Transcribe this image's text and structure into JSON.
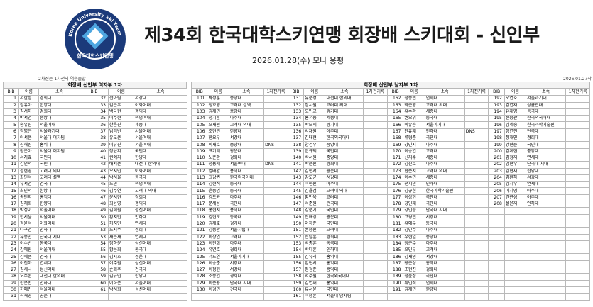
{
  "header": {
    "logo_ring_text": "Korea University Ski Team Association",
    "logo_bottom_text": "한국대학스키연맹",
    "title": "제34회 한국대학스키연맹 회장배 스키대회 - 신인부",
    "subtitle": "2026.01.28(수) 모나 용평"
  },
  "notes": {
    "left": "2차전은 1차전의 역순출발",
    "right": "2026.01.27작성"
  },
  "women": {
    "title": "회장배 신인부 여자부 1차",
    "col_bib": "BIB",
    "col_name": "이름",
    "col_school": "소속",
    "left": [
      [
        "1",
        "서한정",
        "경희대"
      ],
      [
        "2",
        "정유아",
        "한양대"
      ],
      [
        "3",
        "김서하",
        "경희대"
      ],
      [
        "4",
        "박서연",
        "중앙대"
      ],
      [
        "5",
        "송유진",
        "서울여대"
      ],
      [
        "6",
        "정명은",
        "서울과기대"
      ],
      [
        "7",
        "이서은",
        "서울대 여자팀"
      ],
      [
        "8",
        "신해린",
        "홍익대"
      ],
      [
        "9",
        "장은아",
        "서울대 여자팀"
      ],
      [
        "10",
        "서지효",
        "국민대"
      ],
      [
        "11",
        "김연서",
        "국민대"
      ],
      [
        "12",
        "정현영",
        "고려대 의대"
      ],
      [
        "13",
        "최민서",
        "고려대 설백"
      ],
      [
        "14",
        "유서연",
        "건국대"
      ],
      [
        "15",
        "최민서",
        "한양대"
      ],
      [
        "16",
        "송민지",
        "홍익대"
      ],
      [
        "17",
        "김채희",
        "한양대"
      ],
      [
        "18",
        "박정이",
        "서울여대"
      ],
      [
        "19",
        "한서윤",
        "서울여대"
      ],
      [
        "20",
        "정윤서",
        "이화여대"
      ],
      [
        "21",
        "나구연",
        "인하대"
      ],
      [
        "22",
        "유승민",
        "단국대 치대"
      ],
      [
        "23",
        "이수빈",
        "동국대"
      ],
      [
        "24",
        "강예원",
        "서울여대"
      ],
      [
        "25",
        "김예은",
        "건국대"
      ],
      [
        "26",
        "이진하",
        "연세대"
      ],
      [
        "27",
        "김세나",
        "성신여대"
      ],
      [
        "28",
        "오수현",
        "대전대 한의대"
      ],
      [
        "29",
        "한은빈",
        "인하대"
      ],
      [
        "30",
        "허예린",
        "서울여대"
      ],
      [
        "31",
        "허채영",
        "공운대"
      ]
    ],
    "right": [
      [
        "32",
        "전아림",
        "서강대"
      ],
      [
        "33",
        "김은우",
        "이화여대"
      ],
      [
        "34",
        "백다현",
        "홍익대"
      ],
      [
        "35",
        "이주현",
        "숙명여대"
      ],
      [
        "36",
        "한윤진",
        "세종대"
      ],
      [
        "37",
        "남려빈",
        "서울여대"
      ],
      [
        "38",
        "유도은",
        "서울여대"
      ],
      [
        "39",
        "이유진",
        "서울여대"
      ],
      [
        "40",
        "정윤지",
        "국민대"
      ],
      [
        "41",
        "권예지",
        "한양대"
      ],
      [
        "42",
        "배서은",
        "대전대 한의대"
      ],
      [
        "43",
        "오지민",
        "이화여대"
      ],
      [
        "44",
        "박서율",
        "동국대"
      ],
      [
        "45",
        "노민",
        "숙명여대"
      ],
      [
        "46",
        "김주연",
        "고려대 의대"
      ],
      [
        "47",
        "윤서현",
        "경희대"
      ],
      [
        "48",
        "최윤영",
        "홍익대"
      ],
      [
        "49",
        "김해원",
        "성신여대"
      ],
      [
        "50",
        "황지민",
        "인하대"
      ],
      [
        "51",
        "하지민",
        "연세대"
      ],
      [
        "52",
        "노지수",
        "경희대"
      ],
      [
        "53",
        "채은채",
        "연세대"
      ],
      [
        "54",
        "정하윤",
        "성신여대"
      ],
      [
        "55",
        "황윤희",
        "동국대"
      ],
      [
        "56",
        "김시호",
        "경운대"
      ],
      [
        "57",
        "이주원",
        "성신여대"
      ],
      [
        "58",
        "손희주",
        "건국대"
      ],
      [
        "59",
        "김규민",
        "한양대"
      ],
      [
        "60",
        "이하은",
        "서울여대"
      ],
      [
        "61",
        "박서희",
        "성신여대"
      ]
    ]
  },
  "men": {
    "title": "회장배 신인부 남자부 1차",
    "col_bib": "BIB",
    "col_name": "이름",
    "col_school": "소속",
    "col_record": "1차전기록",
    "cols": [
      [
        [
          "101",
          "박성훈",
          "중앙대",
          ""
        ],
        [
          "102",
          "정호영",
          "고려대 설백",
          ""
        ],
        [
          "103",
          "김재민",
          "중앙대",
          ""
        ],
        [
          "104",
          "정기훈",
          "아주대",
          ""
        ],
        [
          "105",
          "오재원",
          "고려대 의대",
          ""
        ],
        [
          "106",
          "조현민",
          "한양대",
          ""
        ],
        [
          "107",
          "한요우",
          "서강대",
          ""
        ],
        [
          "108",
          "이재호",
          "중앙대",
          "DNS"
        ],
        [
          "109",
          "표기태",
          "광운대",
          ""
        ],
        [
          "110",
          "노준환",
          "경희대",
          ""
        ],
        [
          "111",
          "정용재",
          "서울여대",
          "DNS"
        ],
        [
          "112",
          "염태완",
          "홍익대",
          ""
        ],
        [
          "113",
          "최강권",
          "한국외국어대",
          ""
        ],
        [
          "114",
          "김현석",
          "동국대",
          ""
        ],
        [
          "115",
          "윤승엽",
          "동국대",
          ""
        ],
        [
          "116",
          "김도균",
          "아주대",
          ""
        ],
        [
          "117",
          "문세용",
          "국민대",
          ""
        ],
        [
          "118",
          "홍현서",
          "홍익대",
          ""
        ],
        [
          "119",
          "김현모",
          "동국대",
          ""
        ],
        [
          "120",
          "김재호",
          "경기대",
          ""
        ],
        [
          "121",
          "김승환",
          "서울시립대",
          ""
        ],
        [
          "122",
          "이상연",
          "고려대",
          ""
        ],
        [
          "123",
          "이진희",
          "아주대",
          ""
        ],
        [
          "124",
          "유연호",
          "경희대",
          ""
        ],
        [
          "125",
          "서도연",
          "서울과기대",
          ""
        ],
        [
          "126",
          "이승준",
          "서강대",
          ""
        ],
        [
          "127",
          "이정현",
          "서강대",
          ""
        ],
        [
          "128",
          "소승건",
          "경희대",
          ""
        ],
        [
          "129",
          "이준용",
          "단국대 치대",
          ""
        ],
        [
          "130",
          "이경민",
          "건국대",
          ""
        ]
      ],
      [
        [
          "131",
          "유준성",
          "대전대 한의대",
          ""
        ],
        [
          "132",
          "정시원",
          "고려대 의대",
          ""
        ],
        [
          "133",
          "오민교",
          "경기대",
          ""
        ],
        [
          "134",
          "홍서용",
          "세종대",
          ""
        ],
        [
          "135",
          "박모세",
          "경기대",
          ""
        ],
        [
          "136",
          "서재원",
          "아주대",
          ""
        ],
        [
          "137",
          "김태현",
          "한국외국어대",
          ""
        ],
        [
          "138",
          "양건우",
          "중앙대",
          ""
        ],
        [
          "139",
          "한규택",
          "국민대",
          ""
        ],
        [
          "140",
          "박서원",
          "중앙대",
          ""
        ],
        [
          "141",
          "박준원",
          "경희대",
          ""
        ],
        [
          "142",
          "김현서",
          "광운대",
          ""
        ],
        [
          "143",
          "강도균",
          "서강대",
          ""
        ],
        [
          "144",
          "이현원",
          "아주대",
          ""
        ],
        [
          "145",
          "김율겸",
          "고려대 의대",
          ""
        ],
        [
          "146",
          "황민욱",
          "고려대",
          ""
        ],
        [
          "147",
          "서준원",
          "건국대",
          ""
        ],
        [
          "148",
          "강준기",
          "국민대",
          ""
        ],
        [
          "149",
          "전해성",
          "광운대",
          ""
        ],
        [
          "150",
          "이하준",
          "국민대",
          ""
        ],
        [
          "151",
          "권승원",
          "고려대",
          ""
        ],
        [
          "152",
          "전남훈",
          "경희대",
          ""
        ],
        [
          "153",
          "박종훈",
          "동국대",
          ""
        ],
        [
          "154",
          "박다훈",
          "인하대",
          ""
        ],
        [
          "155",
          "김유리",
          "홍익대",
          ""
        ],
        [
          "156",
          "임현서",
          "홍익대",
          ""
        ],
        [
          "157",
          "정정준",
          "홍익대",
          ""
        ],
        [
          "158",
          "서주원",
          "한국외국어대",
          ""
        ],
        [
          "159",
          "김연재",
          "홍익대",
          ""
        ],
        [
          "160",
          "유서윤",
          "국민대",
          ""
        ],
        [
          "161",
          "이승훈",
          "서울대 남자팀",
          ""
        ]
      ],
      [
        [
          "162",
          "정승빈",
          "연세대",
          ""
        ],
        [
          "163",
          "박준영",
          "고려대 의대",
          ""
        ],
        [
          "164",
          "유수환",
          "세종대",
          ""
        ],
        [
          "165",
          "권오위",
          "동국대",
          ""
        ],
        [
          "166",
          "이유승",
          "서울과기대",
          ""
        ],
        [
          "167",
          "안유재",
          "인하대",
          "DNS"
        ],
        [
          "168",
          "류형준",
          "국민대",
          ""
        ],
        [
          "169",
          "강민지",
          "아주대",
          ""
        ],
        [
          "170",
          "이승연",
          "고려대",
          ""
        ],
        [
          "171",
          "신지수",
          "세종대",
          ""
        ],
        [
          "172",
          "김진호",
          "아주대",
          ""
        ],
        [
          "173",
          "한준서",
          "고려대 의대",
          ""
        ],
        [
          "174",
          "이수민",
          "세종대",
          ""
        ],
        [
          "175",
          "전시민",
          "인하대",
          ""
        ],
        [
          "176",
          "김규현",
          "한국과학기술원",
          ""
        ],
        [
          "177",
          "이상현",
          "국민대",
          ""
        ],
        [
          "178",
          "강민재",
          "국민대",
          ""
        ],
        [
          "179",
          "강민승",
          "단국대 치대",
          ""
        ],
        [
          "180",
          "고경민",
          "서강대",
          ""
        ],
        [
          "181",
          "유예우",
          "동국대",
          ""
        ],
        [
          "182",
          "김민수",
          "아주대",
          ""
        ],
        [
          "183",
          "우현일",
          "중앙대",
          ""
        ],
        [
          "184",
          "정준수",
          "아주대",
          ""
        ],
        [
          "185",
          "오민우",
          "고려대",
          ""
        ],
        [
          "186",
          "김재영",
          "서강대",
          ""
        ],
        [
          "187",
          "장준성",
          "홍익대",
          ""
        ],
        [
          "188",
          "조현진",
          "경희대",
          ""
        ],
        [
          "189",
          "정윤성",
          "국민대",
          ""
        ],
        [
          "190",
          "류민석",
          "연세대",
          ""
        ],
        [
          "191",
          "김재민",
          "한양대",
          ""
        ]
      ],
      [
        [
          "192",
          "오연호",
          "서울과기대",
          ""
        ],
        [
          "193",
          "김연재",
          "성균관대",
          ""
        ],
        [
          "194",
          "유재영",
          "동국대",
          ""
        ],
        [
          "195",
          "신승관",
          "한국외국어대",
          ""
        ],
        [
          "196",
          "김세송",
          "한국과학기술원",
          ""
        ],
        [
          "197",
          "정연진",
          "단국대",
          ""
        ],
        [
          "198",
          "정재인",
          "경희대",
          ""
        ],
        [
          "199",
          "강현준",
          "국민대",
          ""
        ],
        [
          "200",
          "김계현",
          "중앙대",
          ""
        ],
        [
          "201",
          "김정재",
          "연세대",
          ""
        ],
        [
          "202",
          "엄현우",
          "단국대 치대",
          ""
        ],
        [
          "203",
          "김현재",
          "한양대",
          ""
        ],
        [
          "204",
          "김환하",
          "서강대",
          ""
        ],
        [
          "205",
          "김지우",
          "연세대",
          ""
        ],
        [
          "206",
          "이지명",
          "아주대",
          ""
        ],
        [
          "207",
          "권련성",
          "아주대",
          ""
        ],
        [
          "208",
          "설윤재",
          "인하대",
          ""
        ]
      ]
    ]
  }
}
